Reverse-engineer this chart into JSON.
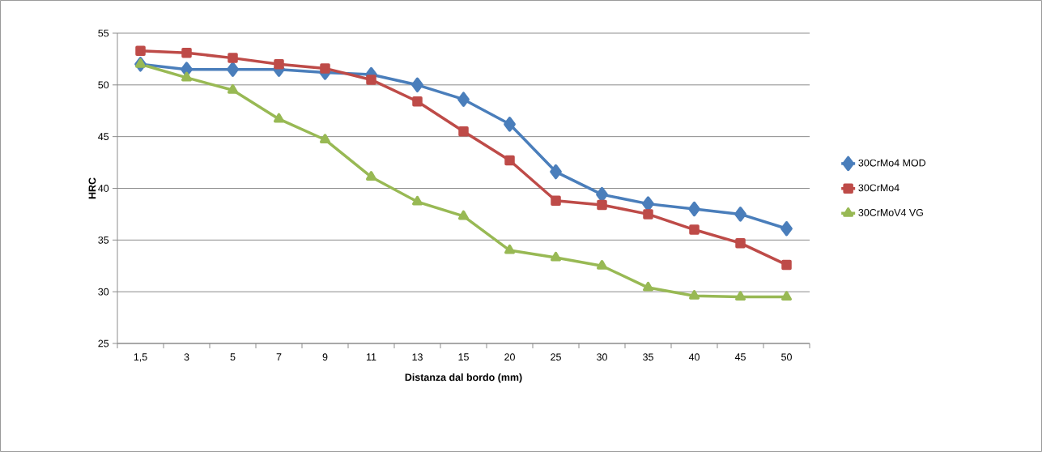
{
  "chart_data": {
    "type": "line",
    "xlabel": "Distanza dal bordo (mm)",
    "ylabel": "HRC",
    "categories": [
      "1,5",
      "3",
      "5",
      "7",
      "9",
      "11",
      "13",
      "15",
      "20",
      "25",
      "30",
      "35",
      "40",
      "45",
      "50"
    ],
    "series": [
      {
        "name": "30CrMo4 MOD",
        "color": "#4a7ebb",
        "marker": "diamond",
        "values": [
          52.0,
          51.5,
          51.5,
          51.5,
          51.2,
          51.0,
          50.0,
          48.6,
          46.2,
          41.6,
          39.4,
          38.5,
          38.0,
          37.5,
          36.1
        ]
      },
      {
        "name": "30CrMo4",
        "color": "#be4b48",
        "marker": "square",
        "values": [
          53.3,
          53.1,
          52.6,
          52.0,
          51.6,
          50.5,
          48.4,
          45.5,
          42.7,
          38.8,
          38.4,
          37.5,
          36.0,
          34.7,
          32.6
        ]
      },
      {
        "name": "30CrMoV4 VG",
        "color": "#98b954",
        "marker": "triangle",
        "values": [
          52.0,
          50.7,
          49.5,
          46.7,
          44.7,
          41.1,
          38.7,
          37.3,
          34.0,
          33.3,
          32.5,
          30.4,
          29.6,
          29.5,
          29.5
        ]
      }
    ],
    "ylim": [
      25,
      55
    ],
    "yticks": [
      25,
      30,
      35,
      40,
      45,
      50,
      55
    ],
    "grid": "y",
    "legend": "right",
    "line_style": "solid"
  }
}
